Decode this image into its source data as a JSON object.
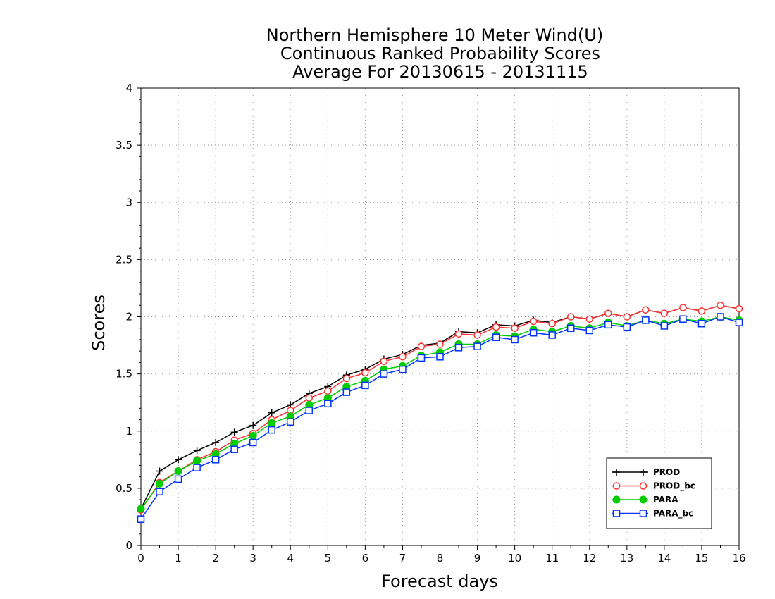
{
  "chart_data": {
    "type": "line",
    "title": [
      "Northern Hemisphere 10 Meter Wind(U)",
      "Continuous Ranked Probability Scores",
      "Average For 20130615 - 20131115"
    ],
    "xlabel": "Forecast days",
    "ylabel": "Scores",
    "xlim": [
      0,
      16
    ],
    "ylim": [
      0,
      4
    ],
    "xticks": [
      "0",
      "1",
      "2",
      "3",
      "4",
      "5",
      "6",
      "7",
      "8",
      "9",
      "10",
      "11",
      "12",
      "13",
      "14",
      "15",
      "16"
    ],
    "yticks": [
      "0",
      "0.5",
      "1",
      "1.5",
      "2",
      "2.5",
      "3",
      "3.5",
      "4"
    ],
    "grid": true,
    "legend_position": "bottom-right",
    "x": [
      0,
      0.5,
      1,
      1.5,
      2,
      2.5,
      3,
      3.5,
      4,
      4.5,
      5,
      5.5,
      6,
      6.5,
      7,
      7.5,
      8,
      8.5,
      9,
      9.5,
      10,
      10.5,
      11,
      11.5,
      12,
      12.5,
      13,
      13.5,
      14,
      14.5,
      15,
      15.5,
      16
    ],
    "series": [
      {
        "name": "PROD",
        "color": "#000000",
        "marker": "plus",
        "values": [
          0.32,
          0.65,
          0.75,
          0.83,
          0.9,
          0.99,
          1.05,
          1.16,
          1.23,
          1.33,
          1.39,
          1.49,
          1.54,
          1.63,
          1.67,
          1.75,
          1.77,
          1.87,
          1.86,
          1.93,
          1.92,
          1.97,
          1.95,
          2.0,
          1.98,
          2.03,
          2.0,
          2.06,
          2.03,
          2.08,
          2.05,
          2.1,
          2.07
        ]
      },
      {
        "name": "PROD_bc",
        "color": "#ff3333",
        "marker": "open-circle",
        "values": [
          0.31,
          0.55,
          0.65,
          0.75,
          0.82,
          0.92,
          0.98,
          1.1,
          1.18,
          1.29,
          1.35,
          1.46,
          1.51,
          1.61,
          1.65,
          1.74,
          1.76,
          1.85,
          1.84,
          1.91,
          1.9,
          1.96,
          1.94,
          2.0,
          1.98,
          2.03,
          2.0,
          2.06,
          2.03,
          2.08,
          2.05,
          2.1,
          2.07
        ]
      },
      {
        "name": "PARA",
        "color": "#00cc00",
        "marker": "filled-circle",
        "values": [
          0.32,
          0.54,
          0.65,
          0.74,
          0.8,
          0.89,
          0.96,
          1.07,
          1.13,
          1.23,
          1.29,
          1.39,
          1.44,
          1.54,
          1.57,
          1.66,
          1.69,
          1.76,
          1.76,
          1.84,
          1.83,
          1.89,
          1.87,
          1.92,
          1.9,
          1.95,
          1.92,
          1.97,
          1.94,
          1.98,
          1.96,
          2.0,
          1.97
        ]
      },
      {
        "name": "PARA_bc",
        "color": "#0033ff",
        "marker": "open-square",
        "values": [
          0.23,
          0.47,
          0.58,
          0.68,
          0.75,
          0.84,
          0.9,
          1.01,
          1.08,
          1.18,
          1.24,
          1.34,
          1.4,
          1.5,
          1.54,
          1.64,
          1.65,
          1.73,
          1.74,
          1.82,
          1.8,
          1.86,
          1.84,
          1.9,
          1.88,
          1.93,
          1.91,
          1.97,
          1.92,
          1.98,
          1.94,
          2.0,
          1.95
        ]
      }
    ]
  }
}
